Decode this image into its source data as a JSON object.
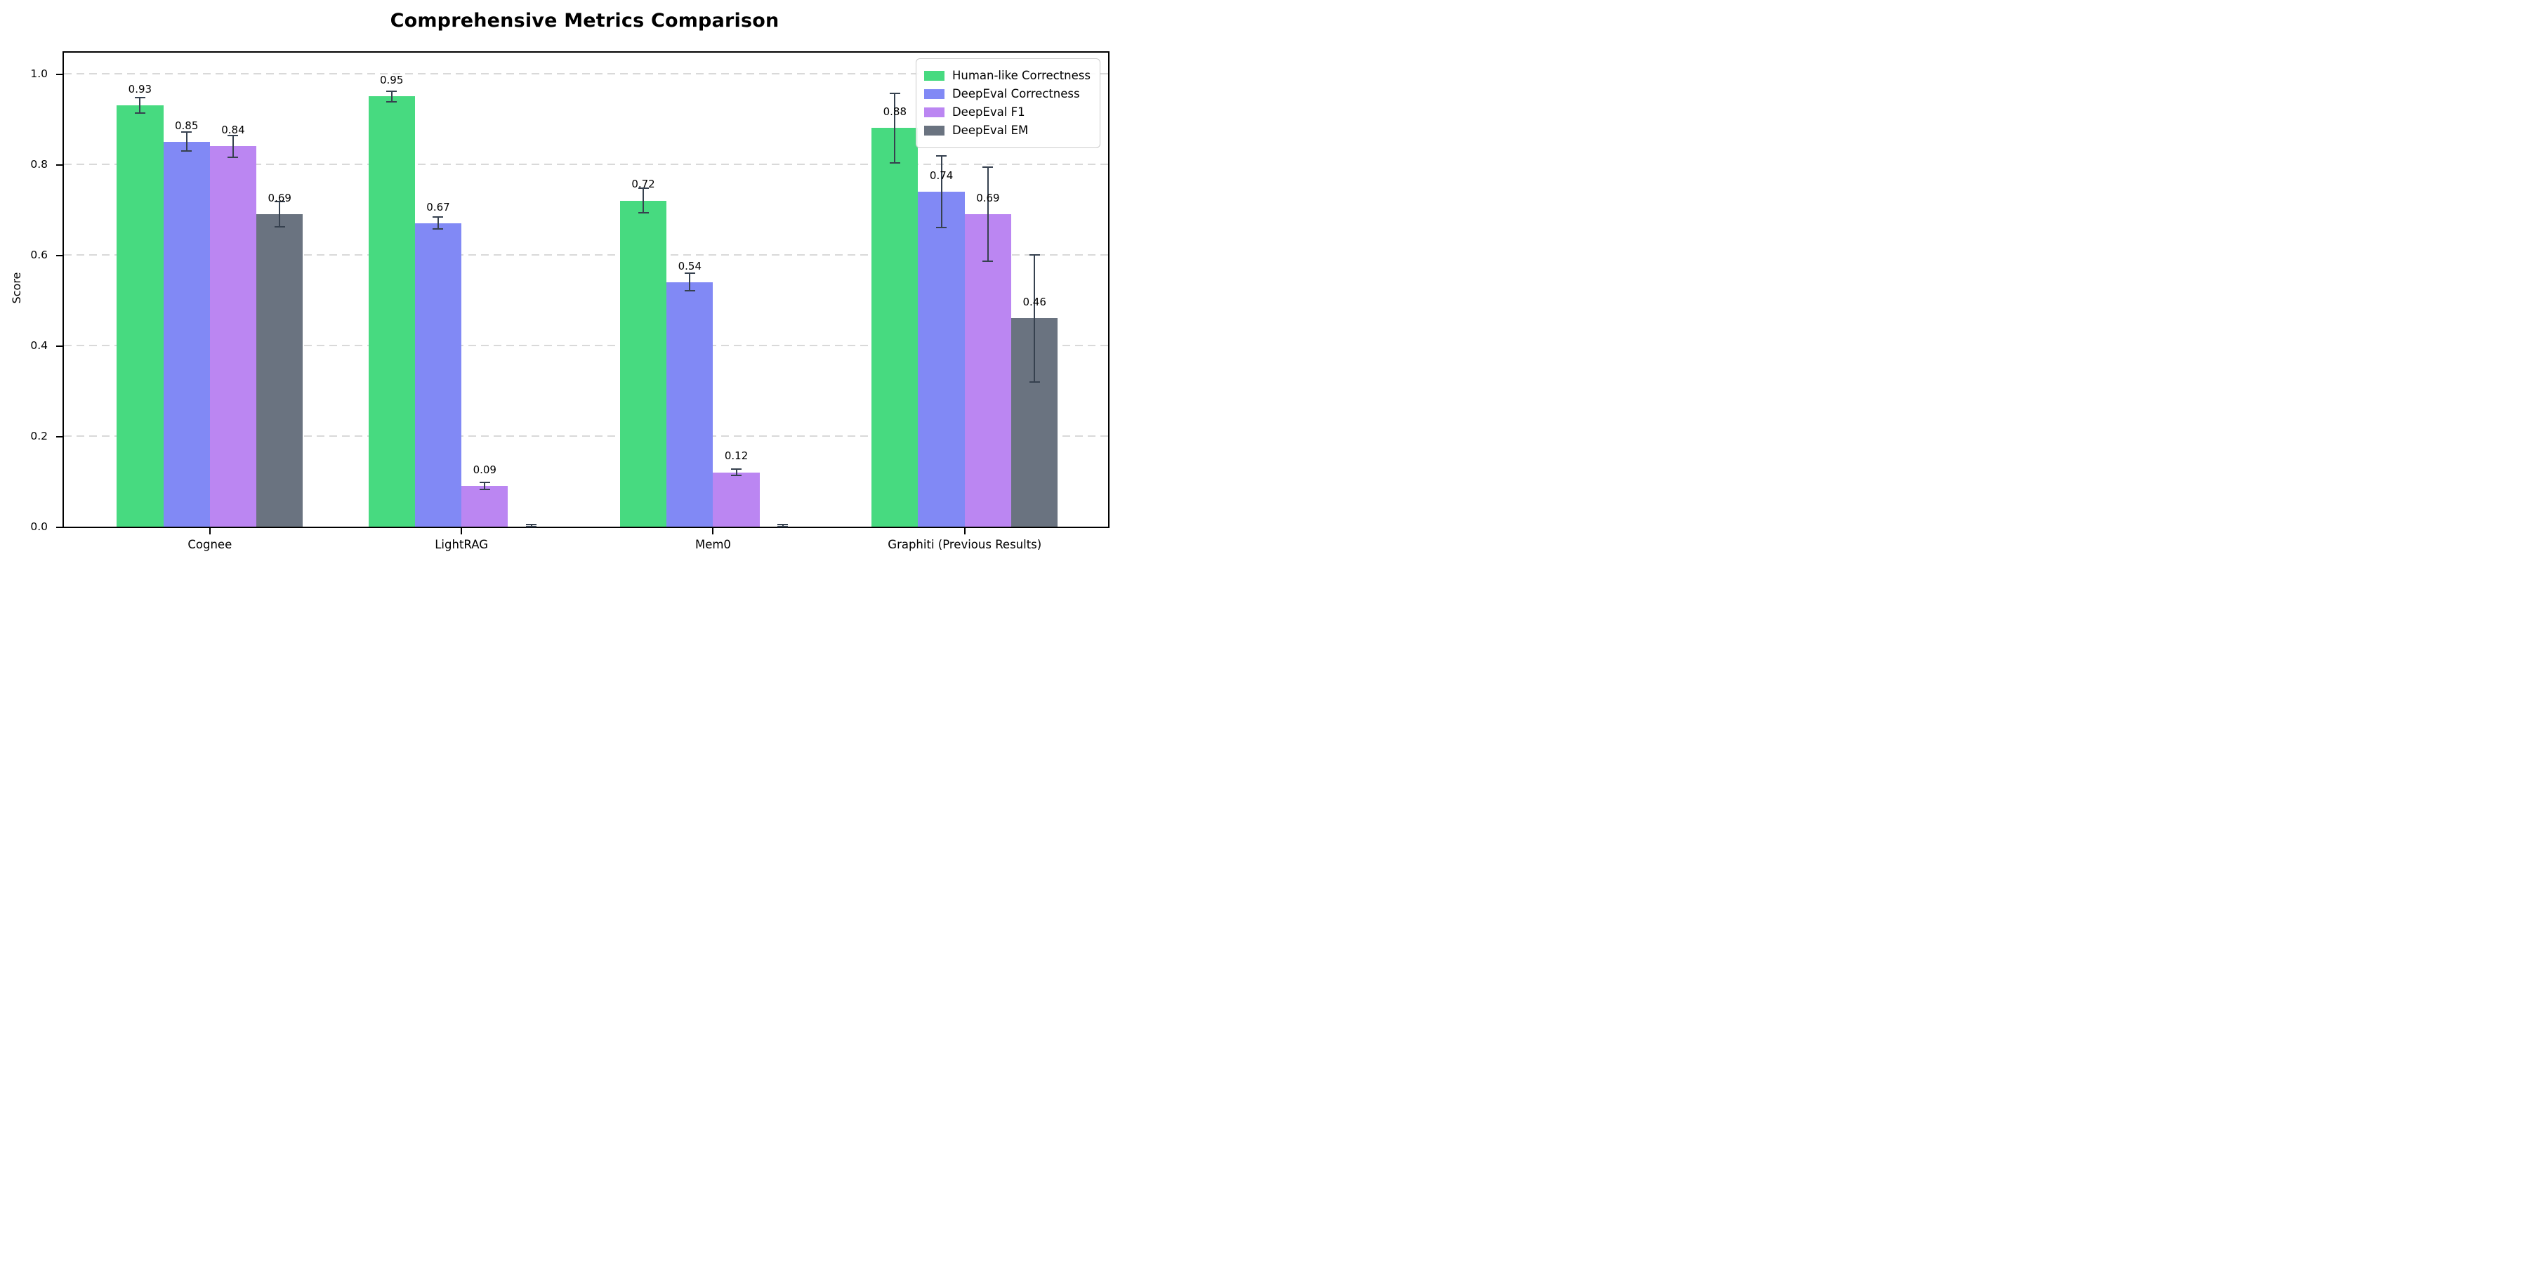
{
  "title": "Comprehensive Metrics Comparison",
  "chart_data": {
    "type": "bar",
    "title": "Comprehensive Metrics Comparison",
    "xlabel": "",
    "ylabel": "Score",
    "categories": [
      "Cognee",
      "LightRAG",
      "Mem0",
      "Graphiti (Previous Results)"
    ],
    "series": [
      {
        "name": "Human-like Correctness",
        "color": "#47da80",
        "values": [
          0.93,
          0.95,
          0.72,
          0.88
        ],
        "errors": [
          0.017,
          0.012,
          0.027,
          0.077
        ],
        "labels": [
          "0.93",
          "0.95",
          "0.72",
          "0.88"
        ]
      },
      {
        "name": "DeepEval Correctness",
        "color": "#8189f5",
        "values": [
          0.85,
          0.67,
          0.54,
          0.74
        ],
        "errors": [
          0.021,
          0.013,
          0.019,
          0.079
        ],
        "labels": [
          "0.85",
          "0.67",
          "0.54",
          "0.74"
        ]
      },
      {
        "name": "DeepEval F1",
        "color": "#bb86f2",
        "values": [
          0.84,
          0.09,
          0.12,
          0.69
        ],
        "errors": [
          0.024,
          0.008,
          0.007,
          0.104
        ],
        "labels": [
          "0.84",
          "0.09",
          "0.12",
          "0.69"
        ]
      },
      {
        "name": "DeepEval EM",
        "color": "#6a7380",
        "values": [
          0.69,
          0.0,
          0.0,
          0.46
        ],
        "errors": [
          0.028,
          0.004,
          0.004,
          0.14
        ],
        "labels": [
          "0.69",
          "",
          "",
          "0.46"
        ]
      }
    ],
    "yticks": [
      "0.0",
      "0.2",
      "0.4",
      "0.6",
      "0.8",
      "1.0"
    ],
    "ytick_values": [
      0.0,
      0.2,
      0.4,
      0.6,
      0.8,
      1.0
    ],
    "ylim": [
      0,
      1.0465
    ],
    "grid": "horizontal-dashed",
    "legend_position": "upper-right",
    "bar_label_value_offset": 0.022,
    "error_bar_color": "#36414f",
    "grid_color": "#d9d9d9"
  }
}
